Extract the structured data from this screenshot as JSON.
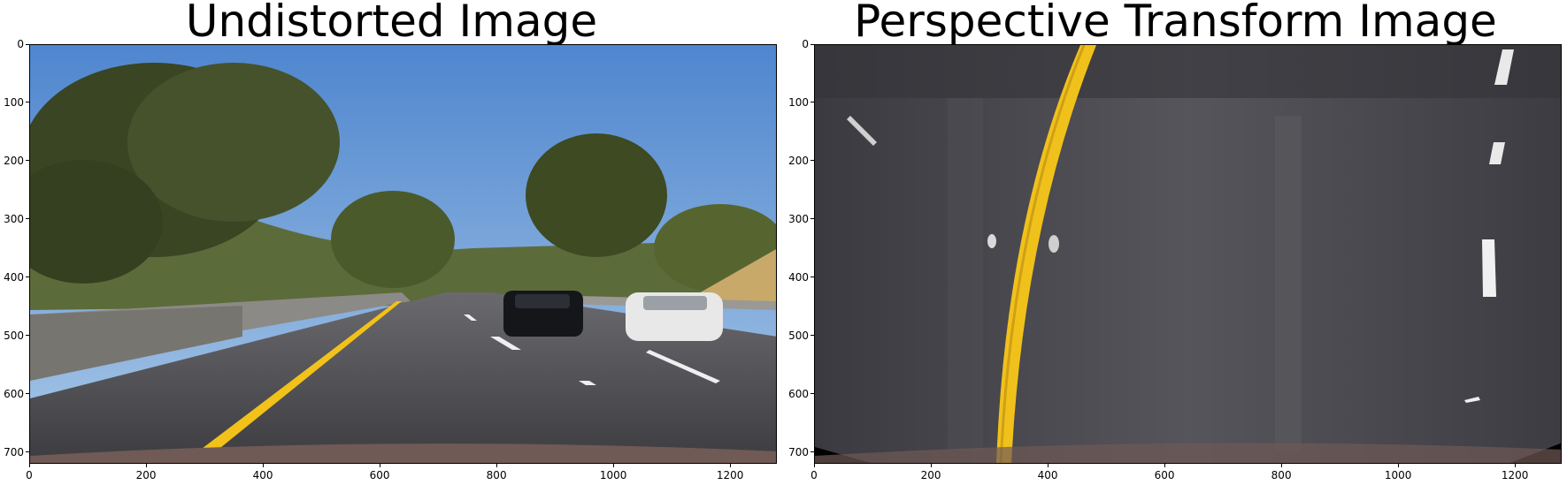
{
  "panels": [
    {
      "title": "Undistorted Image",
      "image_description_icon": "highway-road-scene-image",
      "x_ticks": [
        "0",
        "200",
        "400",
        "600",
        "800",
        "1000",
        "1200"
      ],
      "y_ticks": [
        "0",
        "100",
        "200",
        "300",
        "400",
        "500",
        "600",
        "700"
      ]
    },
    {
      "title": "Perspective Transform Image",
      "image_description_icon": "birds-eye-lane-image",
      "x_ticks": [
        "0",
        "200",
        "400",
        "600",
        "800",
        "1000",
        "1200"
      ],
      "y_ticks": [
        "0",
        "100",
        "200",
        "300",
        "400",
        "500",
        "600",
        "700"
      ]
    }
  ],
  "axis_range": {
    "x": [
      0,
      1280
    ],
    "y": [
      0,
      720
    ]
  },
  "colors": {
    "sky": "#5b8fd0",
    "road": "#4a4a4e",
    "lane_yellow": "#f2c21a",
    "lane_white": "#f4f4f4",
    "tree": "#3b4a26"
  }
}
